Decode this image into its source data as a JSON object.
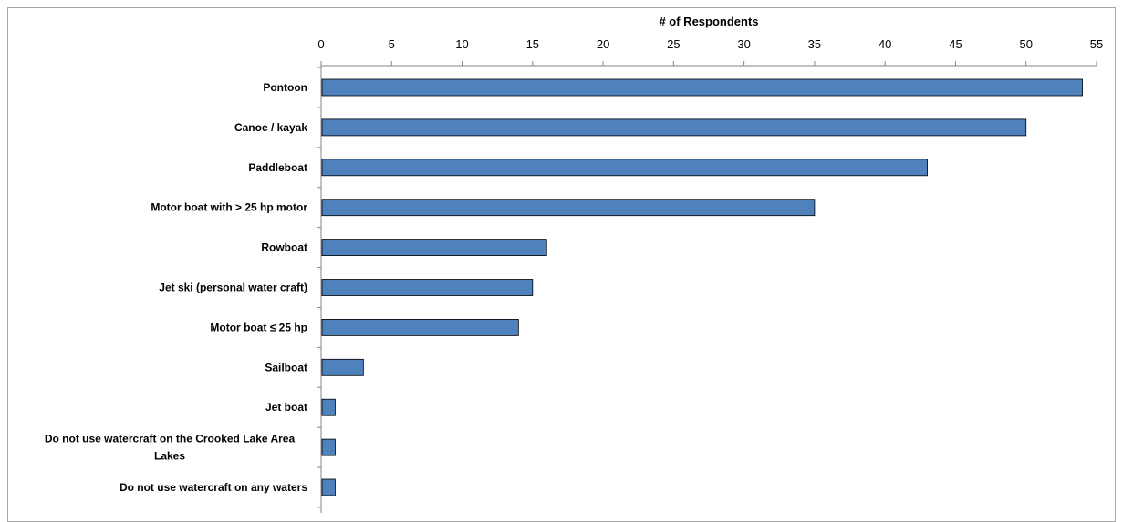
{
  "chart_data": {
    "type": "bar",
    "orientation": "horizontal",
    "title": "",
    "xlabel": "# of Respondents",
    "ylabel": "",
    "x_axis_position": "top",
    "xlim": [
      0,
      55
    ],
    "xticks": [
      0,
      5,
      10,
      15,
      20,
      25,
      30,
      35,
      40,
      45,
      50,
      55
    ],
    "grid": false,
    "legend": "none",
    "bar_color": "#4f81bd",
    "bar_edge_color": "#000000",
    "categories": [
      "Pontoon",
      "Canoe / kayak",
      "Paddleboat",
      "Motor boat with > 25 hp motor",
      "Rowboat",
      "Jet ski (personal water craft)",
      "Motor boat ≤ 25 hp",
      "Sailboat",
      "Jet boat",
      "Do not use watercraft on the Crooked Lake Area Lakes",
      "Do not use watercraft on any waters"
    ],
    "values": [
      54,
      50,
      43,
      35,
      16,
      15,
      14,
      3,
      1,
      1,
      1
    ]
  }
}
